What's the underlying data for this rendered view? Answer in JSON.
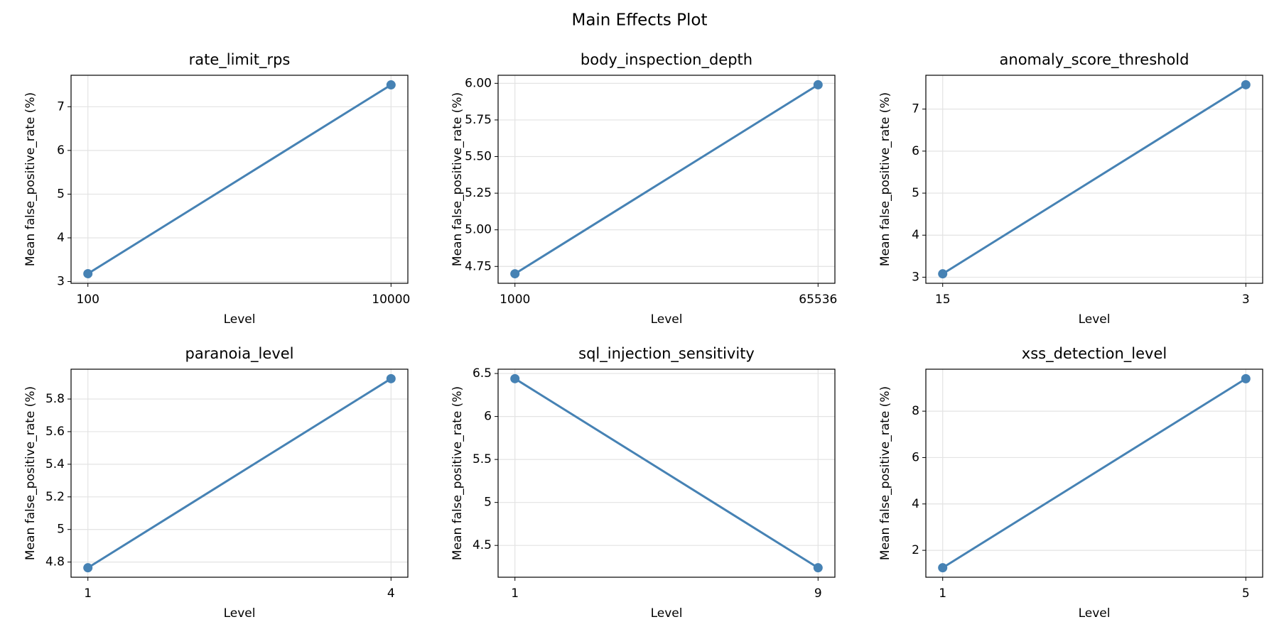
{
  "title": "Main Effects Plot",
  "chart_data": [
    {
      "type": "line",
      "title": "rate_limit_rps",
      "xlabel": "Level",
      "ylabel": "Mean false_positive_rate (%)",
      "color": "#4682b4",
      "grid": true,
      "categories": [
        "100",
        "10000"
      ],
      "values": [
        3.18,
        7.5
      ],
      "ylim": [
        2.96,
        7.72
      ],
      "yticks": [
        3,
        4,
        5,
        6,
        7
      ]
    },
    {
      "type": "line",
      "title": "body_inspection_depth",
      "xlabel": "Level",
      "ylabel": "Mean false_positive_rate (%)",
      "color": "#4682b4",
      "grid": true,
      "categories": [
        "1000",
        "65536"
      ],
      "values": [
        4.7,
        5.99
      ],
      "ylim": [
        4.635,
        6.055
      ],
      "yticks": [
        {
          "value": 4.75,
          "label": "4.75"
        },
        {
          "value": 5,
          "label": "5.00"
        },
        {
          "value": 5.25,
          "label": "5.25"
        },
        {
          "value": 5.5,
          "label": "5.50"
        },
        {
          "value": 5.75,
          "label": "5.75"
        },
        {
          "value": 6,
          "label": "6.00"
        }
      ]
    },
    {
      "type": "line",
      "title": "anomaly_score_threshold",
      "xlabel": "Level",
      "ylabel": "Mean false_positive_rate (%)",
      "color": "#4682b4",
      "grid": true,
      "categories": [
        "15",
        "3"
      ],
      "values": [
        3.08,
        7.58
      ],
      "ylim": [
        2.855,
        7.805
      ],
      "yticks": [
        3,
        4,
        5,
        6,
        7
      ]
    },
    {
      "type": "line",
      "title": "paranoia_level",
      "xlabel": "Level",
      "ylabel": "Mean false_positive_rate (%)",
      "color": "#4682b4",
      "grid": true,
      "categories": [
        "1",
        "4"
      ],
      "values": [
        4.765,
        5.925
      ],
      "ylim": [
        4.707,
        5.983
      ],
      "yticks": [
        4.8,
        5,
        5.2,
        5.4,
        5.6,
        5.8
      ]
    },
    {
      "type": "line",
      "title": "sql_injection_sensitivity",
      "xlabel": "Level",
      "ylabel": "Mean false_positive_rate (%)",
      "color": "#4682b4",
      "grid": true,
      "categories": [
        "1",
        "9"
      ],
      "values": [
        6.44,
        4.24
      ],
      "ylim": [
        4.13,
        6.55
      ],
      "yticks": [
        4.5,
        5,
        5.5,
        6,
        6.5
      ]
    },
    {
      "type": "line",
      "title": "xss_detection_level",
      "xlabel": "Level",
      "ylabel": "Mean false_positive_rate (%)",
      "color": "#4682b4",
      "grid": true,
      "categories": [
        "1",
        "5"
      ],
      "values": [
        1.25,
        9.4
      ],
      "ylim": [
        0.84,
        9.81
      ],
      "yticks": [
        2,
        4,
        6,
        8
      ]
    }
  ]
}
